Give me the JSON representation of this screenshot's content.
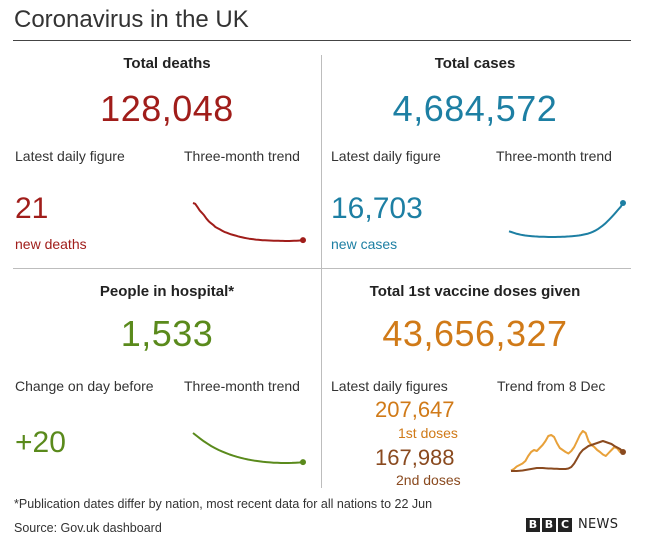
{
  "title": "Coronavirus in the UK",
  "colors": {
    "deaths": "#a01d1a",
    "cases": "#1d7fa3",
    "hospital": "#5a8a1c",
    "first_doses": "#e8a13a",
    "second_doses": "#8a4a1f"
  },
  "deaths": {
    "heading": "Total deaths",
    "total": "128,048",
    "daily_label": "Latest daily figure",
    "trend_label": "Three-month trend",
    "daily_value": "21",
    "daily_caption": "new deaths",
    "trend_values": [
      1000,
      980,
      900,
      820,
      760,
      700,
      620,
      560,
      510,
      470,
      420,
      390,
      360,
      330,
      300,
      280,
      260,
      240,
      225,
      210,
      195,
      180,
      168,
      155,
      145,
      135,
      128,
      120,
      115,
      110,
      105,
      100,
      98,
      95,
      92,
      90,
      88,
      86,
      84,
      83,
      82,
      80,
      80,
      81,
      82,
      84,
      86,
      90,
      95,
      100
    ]
  },
  "cases": {
    "heading": "Total cases",
    "total": "4,684,572",
    "daily_label": "Latest daily figure",
    "trend_label": "Three-month trend",
    "daily_value": "16,703",
    "daily_caption": "new cases",
    "trend_values": [
      260,
      240,
      220,
      200,
      185,
      170,
      160,
      150,
      142,
      135,
      130,
      126,
      122,
      118,
      116,
      114,
      112,
      110,
      110,
      110,
      111,
      112,
      113,
      115,
      118,
      122,
      126,
      130,
      135,
      142,
      150,
      160,
      172,
      185,
      200,
      220,
      245,
      275,
      310,
      350,
      395,
      445,
      500,
      560,
      625,
      690,
      760,
      830,
      900,
      1000
    ]
  },
  "hospital": {
    "heading": "People in hospital*",
    "total": "1,533",
    "daily_label": "Change on day before",
    "trend_label": "Three-month trend",
    "daily_value": "+20",
    "trend_values": [
      1000,
      930,
      860,
      795,
      735,
      680,
      630,
      585,
      545,
      508,
      475,
      445,
      418,
      394,
      372,
      353,
      336,
      321,
      308,
      297,
      288,
      281,
      275,
      271,
      268,
      267,
      268,
      270,
      274,
      280,
      288
    ]
  },
  "vaccine": {
    "heading": "Total 1st vaccine doses given",
    "total": "43,656,327",
    "daily_label": "Latest daily figures",
    "trend_label": "Trend from 8 Dec",
    "first_value": "207,647",
    "first_caption": "1st doses",
    "second_value": "167,988",
    "second_caption": "2nd doses",
    "first_trend": [
      10,
      40,
      90,
      120,
      150,
      200,
      300,
      380,
      420,
      400,
      460,
      520,
      600,
      700,
      720,
      680,
      560,
      460,
      420,
      380,
      350,
      400,
      480,
      600,
      720,
      800,
      760,
      600,
      520,
      480,
      420,
      380,
      330,
      300,
      360,
      420,
      480,
      450,
      380,
      420
    ],
    "second_trend": [
      0,
      0,
      0,
      5,
      10,
      20,
      30,
      40,
      50,
      60,
      60,
      60,
      55,
      50,
      50,
      45,
      45,
      40,
      40,
      40,
      50,
      80,
      150,
      250,
      350,
      420,
      460,
      500,
      520,
      540,
      560,
      580,
      600,
      580,
      560,
      540,
      500,
      470,
      440,
      380
    ]
  },
  "footnote": "*Publication dates differ by nation, most recent data for all nations to 22 Jun",
  "source": "Source: Gov.uk dashboard",
  "brand": {
    "letters": [
      "B",
      "B",
      "C"
    ],
    "news": "NEWS"
  }
}
